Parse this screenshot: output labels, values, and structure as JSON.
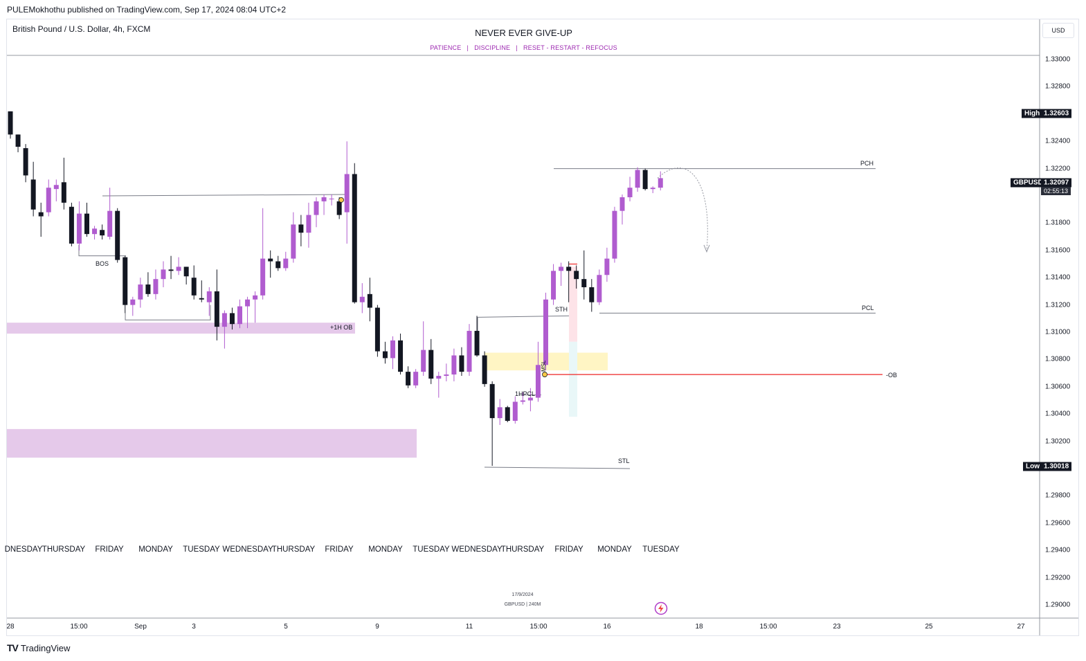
{
  "header": {
    "publisher_line": "PULEMokhothu published on TradingView.com, Sep 17, 2024 08:04 UTC+2",
    "symbol_line": "British Pound / U.S. Dollar, 4h, FXCM",
    "title": "NEVER EVER GIVE-UP",
    "subtitle": "PATIENCE   |   DISCIPLINE   |   RESET - RESTART - REFOCUS",
    "currency": "USD"
  },
  "footer": {
    "brand": "TradingView",
    "watermark_date": "17/9/2024",
    "watermark_symbol": "GBPUSD | 240M",
    "flash_icon": "lightning-bolt-icon"
  },
  "price_scale": {
    "ticks": [
      "1.33000",
      "1.32800",
      "1.32400",
      "1.32200",
      "1.31800",
      "1.31600",
      "1.31400",
      "1.31200",
      "1.31000",
      "1.30800",
      "1.30600",
      "1.30400",
      "1.30200",
      "1.29800",
      "1.29600",
      "1.29400",
      "1.29200",
      "1.29000"
    ],
    "high_label": "High",
    "high_value": "1.32603",
    "low_label": "Low",
    "low_value": "1.30018",
    "symbol_label": "GBPUSD",
    "last_price": "1.32097",
    "countdown": "02:55:13"
  },
  "time_axis": {
    "day_labels": [
      "DNESDAY",
      "THURSDAY",
      "FRIDAY",
      "MONDAY",
      "TUESDAY",
      "WEDNESDAY",
      "THURSDAY",
      "FRIDAY",
      "MONDAY",
      "TUESDAY",
      "WEDNESDAY",
      "THURSDAY",
      "FRIDAY",
      "MONDAY",
      "TUESDAY"
    ],
    "date_ticks": [
      "28",
      "15:00",
      "Sep",
      "3",
      "5",
      "9",
      "11",
      "15:00",
      "16",
      "18",
      "15:00",
      "23",
      "25",
      "27"
    ]
  },
  "annotations": {
    "bos": "BOS",
    "ob_1h": "+1H OB",
    "pch": "PCH",
    "pcl": "PCL",
    "sth": "STH",
    "stl": "STL",
    "ob_minus": "-OB",
    "pcl_1h": "1HPCL",
    "msl": "MSL"
  },
  "colors": {
    "bull": "#b05ccf",
    "bear": "#131722",
    "zone": "#e5c9ea",
    "fvg": "#fff5c4",
    "ob_line": "#f04848",
    "accent": "#9c27b0"
  },
  "chart_data": {
    "type": "candlestick",
    "symbol": "GBPUSD",
    "timeframe": "4h",
    "title": "NEVER EVER GIVE-UP",
    "ylim": [
      1.2885,
      1.3315
    ],
    "high": 1.32603,
    "low": 1.30018,
    "last": 1.32097,
    "candles": [
      [
        1.3262,
        1.3262,
        1.3242,
        1.3245
      ],
      [
        1.3245,
        1.3245,
        1.3232,
        1.3236
      ],
      [
        1.3235,
        1.3238,
        1.321,
        1.3215
      ],
      [
        1.3212,
        1.3225,
        1.3185,
        1.319
      ],
      [
        1.3188,
        1.3195,
        1.317,
        1.3185
      ],
      [
        1.3188,
        1.3212,
        1.3185,
        1.3206
      ],
      [
        1.3205,
        1.3212,
        1.3196,
        1.3208
      ],
      [
        1.321,
        1.3228,
        1.319,
        1.3195
      ],
      [
        1.3192,
        1.3195,
        1.3163,
        1.3165
      ],
      [
        1.3165,
        1.3196,
        1.316,
        1.3187
      ],
      [
        1.3187,
        1.3195,
        1.317,
        1.3172
      ],
      [
        1.3172,
        1.3178,
        1.3168,
        1.3176
      ],
      [
        1.3175,
        1.3179,
        1.3168,
        1.3171
      ],
      [
        1.317,
        1.3206,
        1.3168,
        1.3189
      ],
      [
        1.3189,
        1.3191,
        1.3151,
        1.3153
      ],
      [
        1.3155,
        1.3156,
        1.3114,
        1.312
      ],
      [
        1.312,
        1.3126,
        1.3112,
        1.3124
      ],
      [
        1.3124,
        1.314,
        1.3118,
        1.3135
      ],
      [
        1.3135,
        1.3144,
        1.3126,
        1.3128
      ],
      [
        1.3128,
        1.3146,
        1.3124,
        1.3139
      ],
      [
        1.3139,
        1.3152,
        1.3133,
        1.3146
      ],
      [
        1.3146,
        1.3156,
        1.3139,
        1.3145
      ],
      [
        1.3145,
        1.3155,
        1.3142,
        1.3148
      ],
      [
        1.3148,
        1.3148,
        1.3135,
        1.3141
      ],
      [
        1.314,
        1.3149,
        1.3124,
        1.3127
      ],
      [
        1.3125,
        1.3138,
        1.3122,
        1.3124
      ],
      [
        1.3122,
        1.3133,
        1.3112,
        1.313
      ],
      [
        1.313,
        1.3146,
        1.3094,
        1.3104
      ],
      [
        1.3104,
        1.3116,
        1.3088,
        1.3114
      ],
      [
        1.3114,
        1.3118,
        1.3102,
        1.3106
      ],
      [
        1.3106,
        1.3124,
        1.3103,
        1.3119
      ],
      [
        1.3119,
        1.3126,
        1.3103,
        1.3124
      ],
      [
        1.3124,
        1.313,
        1.3107,
        1.3127
      ],
      [
        1.3127,
        1.3191,
        1.3124,
        1.3154
      ],
      [
        1.3154,
        1.316,
        1.314,
        1.3152
      ],
      [
        1.3152,
        1.3156,
        1.3145,
        1.3147
      ],
      [
        1.3147,
        1.3159,
        1.3145,
        1.3154
      ],
      [
        1.3154,
        1.3188,
        1.3151,
        1.3179
      ],
      [
        1.3179,
        1.3186,
        1.3163,
        1.3173
      ],
      [
        1.3173,
        1.3195,
        1.3162,
        1.3186
      ],
      [
        1.3186,
        1.3199,
        1.3177,
        1.3196
      ],
      [
        1.3196,
        1.3201,
        1.3186,
        1.3199
      ],
      [
        1.3198,
        1.3201,
        1.3193,
        1.3198
      ],
      [
        1.3196,
        1.3199,
        1.3183,
        1.3186
      ],
      [
        1.3188,
        1.324,
        1.3165,
        1.3216
      ],
      [
        1.3216,
        1.3224,
        1.3121,
        1.3122
      ],
      [
        1.3122,
        1.3136,
        1.3114,
        1.3126
      ],
      [
        1.3128,
        1.314,
        1.3108,
        1.3118
      ],
      [
        1.3118,
        1.312,
        1.3082,
        1.3086
      ],
      [
        1.3086,
        1.3093,
        1.3077,
        1.3081
      ],
      [
        1.3081,
        1.3097,
        1.3073,
        1.3094
      ],
      [
        1.3094,
        1.3099,
        1.3069,
        1.3071
      ],
      [
        1.3071,
        1.3075,
        1.3059,
        1.3061
      ],
      [
        1.3061,
        1.3073,
        1.3059,
        1.3071
      ],
      [
        1.3071,
        1.3108,
        1.3068,
        1.3087
      ],
      [
        1.3087,
        1.3095,
        1.3062,
        1.3066
      ],
      [
        1.3066,
        1.3071,
        1.3052,
        1.3068
      ],
      [
        1.3068,
        1.3077,
        1.3064,
        1.3069
      ],
      [
        1.3069,
        1.3088,
        1.3064,
        1.3083
      ],
      [
        1.3083,
        1.3089,
        1.3068,
        1.3071
      ],
      [
        1.3071,
        1.3106,
        1.3068,
        1.3101
      ],
      [
        1.3101,
        1.3112,
        1.3082,
        1.3083
      ],
      [
        1.3083,
        1.3086,
        1.306,
        1.3062
      ],
      [
        1.3062,
        1.3064,
        1.3002,
        1.3037
      ],
      [
        1.3037,
        1.3051,
        1.3032,
        1.3045
      ],
      [
        1.3045,
        1.3046,
        1.3034,
        1.3035
      ],
      [
        1.3035,
        1.3053,
        1.3033,
        1.3049
      ],
      [
        1.3049,
        1.3056,
        1.3047,
        1.305
      ],
      [
        1.305,
        1.3059,
        1.3042,
        1.3052
      ],
      [
        1.3052,
        1.3093,
        1.3049,
        1.3076
      ],
      [
        1.3076,
        1.3129,
        1.3072,
        1.3124
      ],
      [
        1.3124,
        1.315,
        1.312,
        1.3145
      ],
      [
        1.3145,
        1.3151,
        1.3134,
        1.3148
      ],
      [
        1.3148,
        1.3152,
        1.3122,
        1.3145
      ],
      [
        1.3145,
        1.3149,
        1.3132,
        1.3139
      ],
      [
        1.3139,
        1.316,
        1.3124,
        1.3133
      ],
      [
        1.3133,
        1.3139,
        1.3115,
        1.3122
      ],
      [
        1.3122,
        1.3146,
        1.312,
        1.3142
      ],
      [
        1.3142,
        1.3162,
        1.3137,
        1.3154
      ],
      [
        1.3154,
        1.3192,
        1.3151,
        1.3189
      ],
      [
        1.3189,
        1.3201,
        1.3179,
        1.3199
      ],
      [
        1.3199,
        1.3214,
        1.3196,
        1.3206
      ],
      [
        1.3206,
        1.3221,
        1.3203,
        1.3219
      ],
      [
        1.3219,
        1.322,
        1.3204,
        1.3205
      ],
      [
        1.3205,
        1.3207,
        1.3202,
        1.3206
      ],
      [
        1.3206,
        1.3218,
        1.3204,
        1.3213
      ]
    ],
    "levels": [
      {
        "name": "PCH",
        "price": 1.322
      },
      {
        "name": "PCL",
        "price": 1.3114
      },
      {
        "name": "-OB",
        "price": 1.3069
      },
      {
        "name": "STH",
        "price": 1.3111
      },
      {
        "name": "STL",
        "price": 1.3001
      },
      {
        "name": "BOS",
        "price": 1.3176
      }
    ],
    "zones": [
      {
        "name": "+1H OB",
        "top": 1.3107,
        "bottom": 1.3099
      },
      {
        "name": "demand",
        "top": 1.3029,
        "bottom": 1.3008
      },
      {
        "name": "fvg",
        "top": 1.3085,
        "bottom": 1.3072
      }
    ]
  }
}
